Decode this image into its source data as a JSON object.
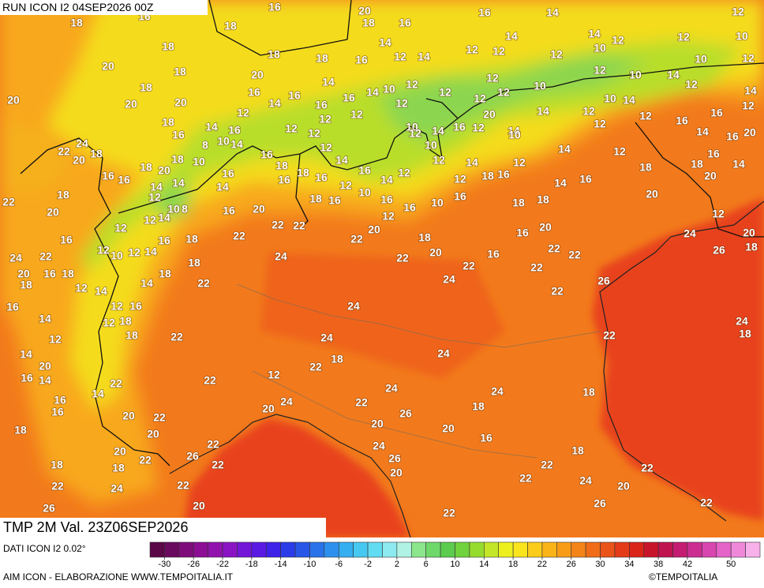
{
  "header": {
    "run": "RUN ICON I2 04SEP2026 00Z",
    "valid": "TMP 2M Val. 23Z06SEP2026",
    "source": "DATI ICON I2 0.02°",
    "credit": "AIM ICON - ELABORAZIONE WWW.TEMPOITALIA.IT",
    "copyright": "©TEMPOITALIA"
  },
  "colorbar": {
    "ticks": [
      -30,
      -26,
      -22,
      -18,
      -14,
      -10,
      -6,
      -2,
      2,
      6,
      10,
      14,
      18,
      22,
      26,
      30,
      34,
      38,
      42,
      50
    ],
    "colors": [
      "#5a0848",
      "#6a0a5e",
      "#7e0c7a",
      "#8c0e94",
      "#9212ae",
      "#8a14c4",
      "#7416d8",
      "#5a1ae4",
      "#3e22e8",
      "#2a3ce8",
      "#2856e6",
      "#2a72ea",
      "#2e90ee",
      "#36aef0",
      "#46c8f0",
      "#62dcf2",
      "#8ceaf0",
      "#b0f2e4",
      "#8ce68c",
      "#6ed86a",
      "#5ccc4e",
      "#70d23c",
      "#96dc2e",
      "#c4e628",
      "#eef01e",
      "#fae41c",
      "#fccc1a",
      "#fbb418",
      "#f89c18",
      "#f48418",
      "#f06c18",
      "#ea5418",
      "#e43c18",
      "#da2418",
      "#c8142a",
      "#c01450",
      "#c41c72",
      "#cc2e92",
      "#d846b0",
      "#e464c8",
      "#f088da",
      "#f8b0ea"
    ]
  },
  "map_labels": [
    16,
    20,
    18,
    16,
    16,
    14,
    12,
    18,
    16,
    18,
    14,
    14,
    14,
    12,
    10,
    18,
    18,
    18,
    16,
    12,
    14,
    12,
    12,
    12,
    10,
    12,
    10,
    12,
    20,
    18,
    20,
    14,
    14,
    10,
    12,
    12,
    10,
    12,
    10,
    14,
    12,
    20,
    18,
    20,
    20,
    16,
    14,
    16,
    16,
    16,
    12,
    12,
    12,
    12,
    14,
    10,
    14,
    14,
    12,
    18,
    14,
    12,
    16,
    12,
    12,
    12,
    12,
    10,
    10,
    14,
    16,
    12,
    20,
    14,
    12,
    12,
    12,
    16,
    16,
    24,
    22,
    20,
    18,
    16,
    8,
    10,
    14,
    16,
    12,
    12,
    10,
    14,
    12,
    14,
    20,
    16,
    16,
    16,
    16,
    18,
    20,
    18,
    14,
    14,
    10,
    16,
    14,
    18,
    16,
    18,
    16,
    14,
    12,
    16,
    10,
    14,
    12,
    12,
    14,
    12,
    18,
    16,
    12,
    14,
    16,
    18,
    18,
    20,
    14,
    22,
    18,
    20,
    12,
    10,
    8,
    16,
    20,
    18,
    16,
    16,
    16,
    10,
    16,
    18,
    18,
    20,
    12,
    12,
    14,
    16,
    18,
    22,
    22,
    22,
    12,
    20,
    22,
    18,
    16,
    20,
    12,
    24,
    20,
    18,
    16,
    22,
    24,
    12,
    10,
    12,
    14,
    24,
    22,
    20,
    16,
    22,
    22,
    26,
    20,
    16,
    18,
    18,
    12,
    14,
    14,
    18,
    18,
    22,
    24,
    22,
    22,
    26,
    16,
    14,
    12,
    16,
    12,
    18,
    24,
    22,
    12,
    18,
    22,
    24,
    24,
    22,
    24,
    18,
    14,
    20,
    22,
    18,
    16,
    14,
    22,
    22,
    12,
    14,
    16,
    16,
    20,
    22,
    24,
    20,
    22,
    24,
    24,
    18,
    26,
    18,
    18,
    20,
    20,
    20,
    22,
    16,
    20,
    18,
    22,
    26,
    22,
    24,
    26,
    20,
    22,
    18,
    18,
    22,
    24,
    22,
    22,
    24,
    22,
    20,
    26,
    20,
    26,
    22,
    22
  ]
}
